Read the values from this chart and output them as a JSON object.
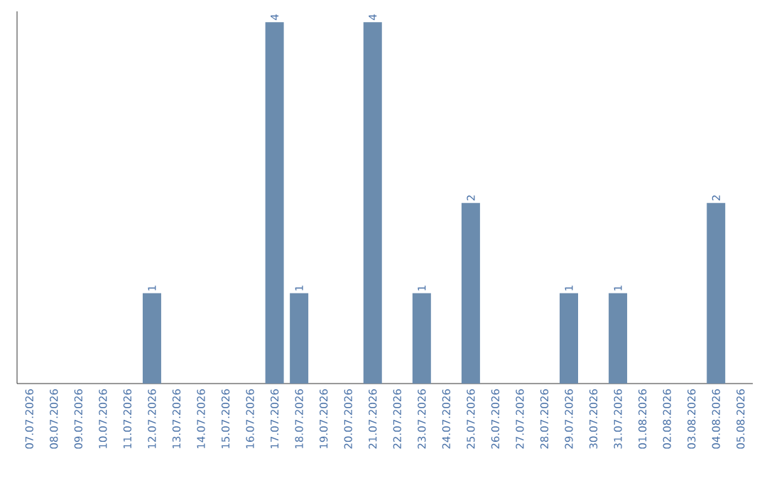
{
  "chart_data": {
    "type": "bar",
    "categories": [
      "07.07.2026",
      "08.07.2026",
      "09.07.2026",
      "10.07.2026",
      "11.07.2026",
      "12.07.2026",
      "13.07.2026",
      "14.07.2026",
      "15.07.2026",
      "16.07.2026",
      "17.07.2026",
      "18.07.2026",
      "19.07.2026",
      "20.07.2026",
      "21.07.2026",
      "22.07.2026",
      "23.07.2026",
      "24.07.2026",
      "25.07.2026",
      "26.07.2026",
      "27.07.2026",
      "28.07.2026",
      "29.07.2026",
      "30.07.2026",
      "31.07.2026",
      "01.08.2026",
      "02.08.2026",
      "03.08.2026",
      "04.08.2026",
      "05.08.2026"
    ],
    "values": [
      0,
      0,
      0,
      0,
      0,
      1,
      0,
      0,
      0,
      0,
      4,
      1,
      0,
      0,
      4,
      0,
      1,
      0,
      2,
      0,
      0,
      0,
      1,
      0,
      1,
      0,
      0,
      0,
      2,
      0
    ],
    "value_labels": [
      null,
      null,
      null,
      null,
      null,
      "1",
      null,
      null,
      null,
      null,
      "4",
      "1",
      null,
      null,
      "4",
      null,
      "1",
      null,
      "2",
      null,
      null,
      null,
      "1",
      null,
      "1",
      null,
      null,
      null,
      "2",
      null
    ],
    "color": "#6b8cae",
    "tick_labels": "x"
  }
}
